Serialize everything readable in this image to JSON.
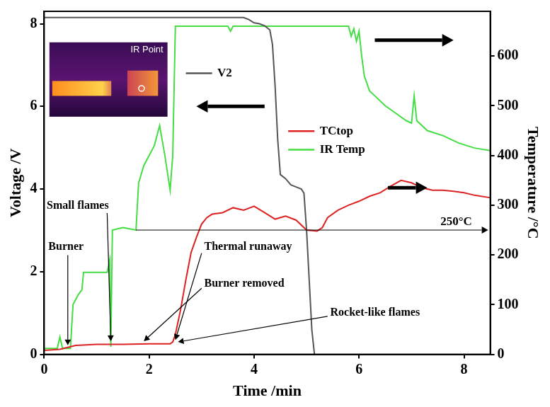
{
  "chart_data": {
    "type": "line",
    "x_label": "Time /min",
    "y_label": "Voltage /V",
    "y2_label": "Temperature /°C",
    "xlim": [
      0,
      8.5
    ],
    "xticks": [
      0,
      2,
      4,
      6,
      8
    ],
    "ylim": [
      0,
      8.3
    ],
    "yticks": [
      0,
      2,
      4,
      6,
      8
    ],
    "y2lim": [
      0,
      690
    ],
    "y2ticks": [
      0,
      100,
      200,
      300,
      400,
      500,
      600
    ],
    "grid": false,
    "legend": "center",
    "series": [
      {
        "name": "V2",
        "color": "#555555",
        "axis": "y",
        "x": [
          0,
          0.5,
          1,
          2,
          3,
          3.8,
          3.9,
          4.0,
          4.1,
          4.2,
          4.3,
          4.35,
          4.4,
          4.45,
          4.5,
          4.6,
          4.7,
          4.8,
          4.9,
          4.95,
          5.0,
          5.05,
          5.1,
          5.15
        ],
        "values": [
          8.15,
          8.15,
          8.15,
          8.15,
          8.15,
          8.15,
          8.1,
          8.02,
          8.0,
          7.95,
          7.85,
          7.5,
          6.5,
          5.2,
          4.35,
          4.25,
          4.1,
          4.05,
          4.0,
          3.9,
          3.0,
          1.8,
          0.6,
          0
        ]
      },
      {
        "name": "TCtop",
        "color": "#dd2222",
        "axis": "y2",
        "x": [
          0,
          0.3,
          0.6,
          1.0,
          1.5,
          2.0,
          2.4,
          2.45,
          2.5,
          2.6,
          2.7,
          2.8,
          2.9,
          3.0,
          3.1,
          3.2,
          3.4,
          3.6,
          3.8,
          4.0,
          4.2,
          4.4,
          4.6,
          4.8,
          5.0,
          5.2,
          5.3,
          5.4,
          5.6,
          5.8,
          6.0,
          6.2,
          6.4,
          6.6,
          6.8,
          7.0,
          7.2,
          7.4,
          7.6,
          7.8,
          8.0,
          8.2,
          8.5
        ],
        "values": [
          8,
          10,
          18,
          20,
          20,
          21,
          21,
          25,
          40,
          90,
          150,
          205,
          235,
          262,
          275,
          282,
          285,
          295,
          290,
          298,
          285,
          272,
          278,
          270,
          250,
          248,
          255,
          275,
          290,
          300,
          308,
          318,
          325,
          338,
          350,
          345,
          335,
          330,
          330,
          328,
          325,
          320,
          315
        ]
      },
      {
        "name": "IR Temp",
        "color": "#44dd44",
        "axis": "y2",
        "x": [
          0,
          0.25,
          0.3,
          0.35,
          0.5,
          0.55,
          0.65,
          0.72,
          0.75,
          1.0,
          1.2,
          1.25,
          1.27,
          1.3,
          1.5,
          1.75,
          1.8,
          1.9,
          2.0,
          2.1,
          2.15,
          2.2,
          2.25,
          2.3,
          2.4,
          2.45,
          2.5,
          3.5,
          3.55,
          3.6,
          5.8,
          5.85,
          5.9,
          5.95,
          6.0,
          6.05,
          6.1,
          6.2,
          6.3,
          6.5,
          6.7,
          6.9,
          7.0,
          7.05,
          7.1,
          7.3,
          7.6,
          7.9,
          8.2,
          8.5
        ],
        "values": [
          12,
          12,
          35,
          12,
          12,
          100,
          120,
          130,
          165,
          165,
          165,
          190,
          15,
          250,
          255,
          250,
          345,
          380,
          400,
          420,
          440,
          460,
          430,
          400,
          330,
          400,
          660,
          660,
          650,
          660,
          660,
          640,
          655,
          630,
          650,
          600,
          560,
          530,
          520,
          500,
          485,
          470,
          465,
          520,
          470,
          450,
          440,
          425,
          415,
          410
        ]
      }
    ],
    "annotations": [
      {
        "text": "Burner"
      },
      {
        "text": "Small flames"
      },
      {
        "text": "Burner removed"
      },
      {
        "text": "Thermal runaway"
      },
      {
        "text": "Rocket-like flames"
      }
    ],
    "reference_line": {
      "value": 250,
      "label": "250°C",
      "axis": "y2"
    },
    "inset": {
      "text": "IR Point"
    }
  }
}
